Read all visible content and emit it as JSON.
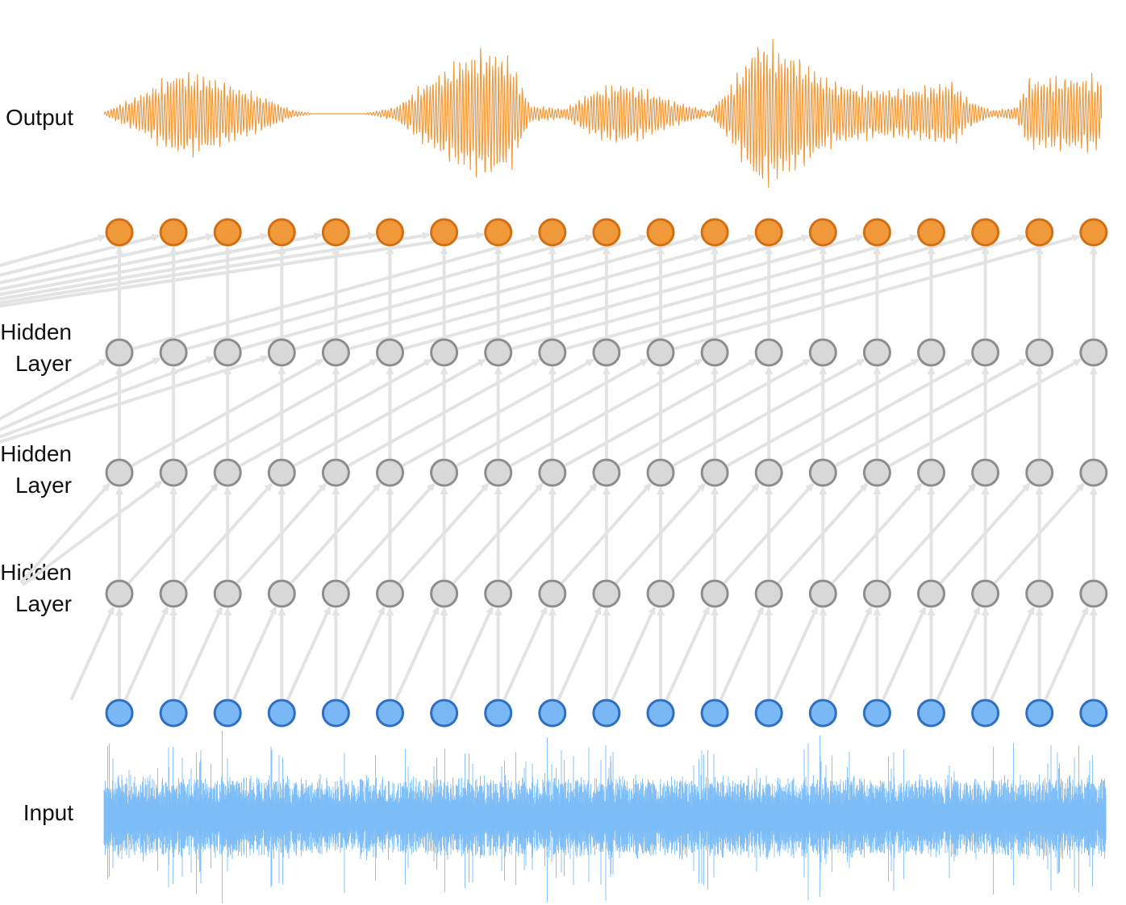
{
  "labels": {
    "output": "Output",
    "hidden_layers": [
      {
        "line1": "Hidden",
        "line2": "Layer"
      },
      {
        "line1": "Hidden",
        "line2": "Layer"
      },
      {
        "line1": "Hidden",
        "line2": "Layer"
      }
    ],
    "input": "Input"
  },
  "network": {
    "nodes_per_layer": 19,
    "layers": [
      {
        "name": "input",
        "fill": "#7ab8f5",
        "stroke": "#2f6fc2"
      },
      {
        "name": "hidden-1",
        "fill": "#d8d8d8",
        "stroke": "#8d8d8d",
        "dilation": 1
      },
      {
        "name": "hidden-2",
        "fill": "#d8d8d8",
        "stroke": "#8d8d8d",
        "dilation": 2
      },
      {
        "name": "hidden-3",
        "fill": "#d8d8d8",
        "stroke": "#8d8d8d",
        "dilation": 4
      },
      {
        "name": "output",
        "fill": "#f0993a",
        "stroke": "#d36f12",
        "dilation": 8
      }
    ],
    "connection_color": "#e3e3e3"
  },
  "waveforms": {
    "output_color": "#f0993a",
    "input_color": "#7dbdf7"
  }
}
